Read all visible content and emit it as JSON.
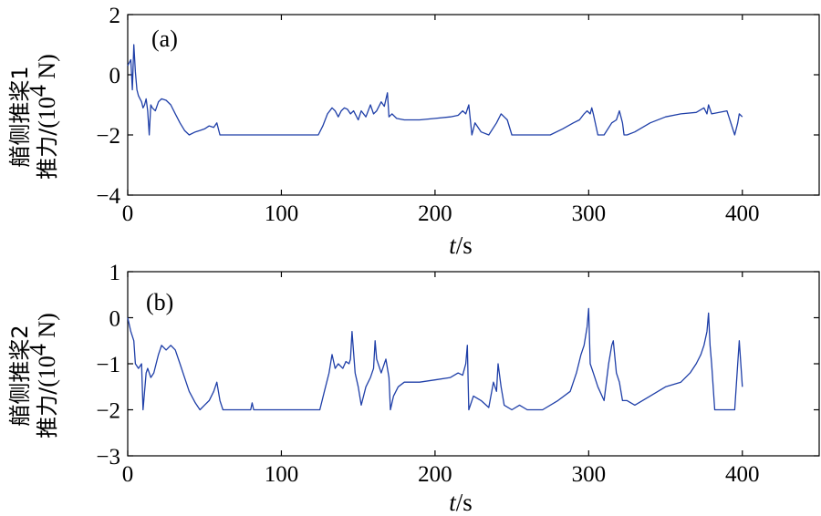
{
  "chart_data": [
    {
      "type": "line",
      "panel_label": "(a)",
      "xlabel_italic": "t",
      "xlabel_unit": "/s",
      "ylabel_line1": "艏侧推桨1",
      "ylabel_line2_text": "推力/",
      "ylabel_unit": "(10",
      "ylabel_unit_exp": "4",
      "ylabel_unit_end": " N)",
      "xlim": [
        0,
        450
      ],
      "ylim": [
        -4,
        2
      ],
      "xticks": [
        0,
        100,
        200,
        300,
        400
      ],
      "xtick_labels": [
        "0",
        "100",
        "200",
        "300",
        "400"
      ],
      "yticks": [
        -4,
        -2,
        0,
        2
      ],
      "ytick_labels": [
        "−4",
        "−2",
        "0",
        "2"
      ],
      "series": [
        {
          "color": "#1f3fa8",
          "x": [
            0,
            2,
            3,
            4,
            5,
            6,
            7,
            8,
            9,
            10,
            11,
            12,
            13,
            14,
            15,
            16,
            18,
            20,
            22,
            25,
            28,
            31,
            34,
            37,
            40,
            44,
            47,
            50,
            53,
            56,
            58,
            60,
            70,
            90,
            110,
            124,
            127,
            130,
            133,
            135,
            137,
            139,
            141,
            143,
            145,
            147,
            150,
            152,
            155,
            158,
            160,
            162,
            165,
            167,
            169,
            170,
            172,
            175,
            180,
            190,
            200,
            210,
            215,
            218,
            220,
            222,
            224,
            226,
            230,
            235,
            240,
            243,
            245,
            247,
            250,
            260,
            275,
            283,
            290,
            294,
            297,
            299,
            301,
            302,
            303,
            306,
            310,
            315,
            318,
            320,
            322,
            323,
            325,
            330,
            340,
            350,
            360,
            370,
            375,
            377,
            378,
            380,
            390,
            395,
            397,
            398,
            400
          ],
          "y": [
            0.3,
            0.5,
            -0.5,
            1.0,
            0.1,
            -0.5,
            -0.7,
            -0.8,
            -0.9,
            -1.1,
            -1.0,
            -0.8,
            -1.2,
            -2.0,
            -1.0,
            -1.1,
            -1.2,
            -0.9,
            -0.8,
            -0.85,
            -1.0,
            -1.3,
            -1.6,
            -1.85,
            -2.0,
            -1.9,
            -1.85,
            -1.8,
            -1.7,
            -1.75,
            -1.6,
            -2.0,
            -2.0,
            -2.0,
            -2.0,
            -2.0,
            -1.7,
            -1.3,
            -1.1,
            -1.2,
            -1.4,
            -1.2,
            -1.1,
            -1.15,
            -1.3,
            -1.2,
            -1.5,
            -1.2,
            -1.4,
            -1.0,
            -1.3,
            -1.2,
            -0.9,
            -1.05,
            -0.6,
            -1.4,
            -1.3,
            -1.45,
            -1.5,
            -1.5,
            -1.45,
            -1.4,
            -1.35,
            -1.2,
            -1.3,
            -1.0,
            -2.0,
            -1.6,
            -1.9,
            -2.0,
            -1.6,
            -1.3,
            -1.4,
            -1.5,
            -2.0,
            -2.0,
            -2.0,
            -1.8,
            -1.6,
            -1.5,
            -1.3,
            -1.2,
            -1.3,
            -1.1,
            -1.3,
            -2.0,
            -2.0,
            -1.6,
            -1.5,
            -1.2,
            -1.6,
            -2.0,
            -2.0,
            -1.9,
            -1.6,
            -1.4,
            -1.3,
            -1.25,
            -1.1,
            -1.3,
            -1.0,
            -1.3,
            -1.2,
            -2.0,
            -1.6,
            -1.3,
            -1.4
          ]
        }
      ]
    },
    {
      "type": "line",
      "panel_label": "(b)",
      "xlabel_italic": "t",
      "xlabel_unit": "/s",
      "ylabel_line1": "艏侧推桨2",
      "ylabel_line2_text": "推力/",
      "ylabel_unit": "(10",
      "ylabel_unit_exp": "4",
      "ylabel_unit_end": " N)",
      "xlim": [
        0,
        450
      ],
      "ylim": [
        -3,
        1
      ],
      "xticks": [
        0,
        100,
        200,
        300,
        400
      ],
      "xtick_labels": [
        "0",
        "100",
        "200",
        "300",
        "400"
      ],
      "yticks": [
        -3,
        -2,
        -1,
        0,
        1
      ],
      "ytick_labels": [
        "−3",
        "−2",
        "−1",
        "0",
        "1"
      ],
      "series": [
        {
          "color": "#1f3fa8",
          "x": [
            0,
            2,
            4,
            5,
            7,
            9,
            10,
            12,
            13,
            15,
            17,
            20,
            22,
            25,
            28,
            31,
            34,
            37,
            40,
            44,
            47,
            50,
            53,
            56,
            58,
            60,
            62,
            70,
            80,
            81,
            82,
            90,
            110,
            125,
            128,
            131,
            133,
            135,
            137,
            140,
            142,
            144,
            145,
            146,
            148,
            150,
            152,
            155,
            158,
            160,
            161,
            162,
            165,
            168,
            170,
            171,
            173,
            176,
            180,
            190,
            200,
            210,
            215,
            218,
            220,
            221,
            222,
            225,
            230,
            235,
            238,
            240,
            241,
            243,
            245,
            250,
            255,
            260,
            270,
            280,
            288,
            292,
            295,
            297,
            299,
            300,
            301,
            303,
            306,
            310,
            313,
            315,
            316,
            318,
            320,
            322,
            325,
            330,
            340,
            350,
            360,
            366,
            370,
            373,
            375,
            377,
            378,
            379,
            380,
            382,
            385,
            390,
            395,
            397,
            398,
            400
          ],
          "y": [
            0.0,
            -0.3,
            -0.5,
            -1.0,
            -1.1,
            -1.0,
            -2.0,
            -1.2,
            -1.1,
            -1.3,
            -1.2,
            -0.8,
            -0.6,
            -0.7,
            -0.6,
            -0.7,
            -1.0,
            -1.3,
            -1.6,
            -1.85,
            -2.0,
            -1.9,
            -1.8,
            -1.6,
            -1.4,
            -1.8,
            -2.0,
            -2.0,
            -2.0,
            -1.85,
            -2.0,
            -2.0,
            -2.0,
            -2.0,
            -1.6,
            -1.2,
            -0.8,
            -1.1,
            -1.0,
            -1.1,
            -0.95,
            -1.0,
            -0.9,
            -0.3,
            -1.2,
            -1.5,
            -1.9,
            -1.5,
            -1.3,
            -1.1,
            -0.5,
            -0.9,
            -1.2,
            -0.9,
            -1.3,
            -2.0,
            -1.7,
            -1.5,
            -1.4,
            -1.4,
            -1.35,
            -1.3,
            -1.2,
            -1.25,
            -1.0,
            -0.6,
            -2.0,
            -1.7,
            -1.8,
            -1.95,
            -1.4,
            -1.6,
            -1.0,
            -1.5,
            -1.9,
            -2.0,
            -1.9,
            -2.0,
            -2.0,
            -1.8,
            -1.6,
            -1.2,
            -0.8,
            -0.6,
            -0.2,
            0.2,
            -1.0,
            -1.2,
            -1.5,
            -1.8,
            -1.0,
            -0.6,
            -0.5,
            -1.2,
            -1.4,
            -1.8,
            -1.8,
            -1.9,
            -1.7,
            -1.5,
            -1.4,
            -1.2,
            -1.0,
            -0.8,
            -0.6,
            -0.3,
            0.1,
            -0.6,
            -1.0,
            -2.0,
            -2.0,
            -2.0,
            -2.0,
            -1.0,
            -0.5,
            -1.5
          ]
        }
      ]
    }
  ]
}
